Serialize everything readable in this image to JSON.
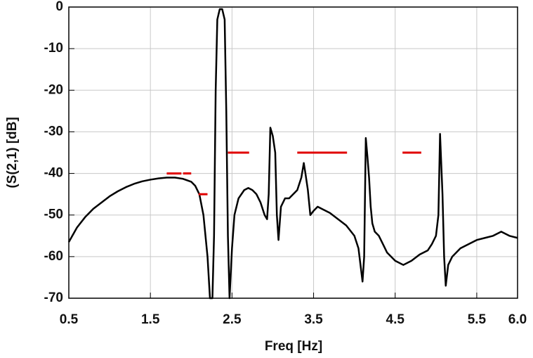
{
  "chart_data": {
    "type": "line",
    "xlabel": "Freq [Hz]",
    "ylabel": "(S(2,1) [dB]",
    "xlim": [
      0.5,
      6
    ],
    "ylim": [
      -70,
      0
    ],
    "xticks": [
      0.5,
      1.5,
      2.5,
      3.5,
      4.5,
      5.5,
      {
        "value": 6,
        "label": "6.0"
      }
    ],
    "yticks": [
      0,
      -10,
      -20,
      -30,
      -40,
      -50,
      -60,
      -70
    ],
    "grid": true,
    "series": [
      {
        "color": "#000000",
        "x": [
          0.5,
          0.6,
          0.7,
          0.8,
          0.9,
          1.0,
          1.1,
          1.2,
          1.3,
          1.4,
          1.5,
          1.6,
          1.7,
          1.8,
          1.9,
          2.0,
          2.05,
          2.1,
          2.15,
          2.2,
          2.23,
          2.26,
          2.28,
          2.3,
          2.32,
          2.35,
          2.38,
          2.41,
          2.43,
          2.45,
          2.47,
          2.5,
          2.53,
          2.58,
          2.65,
          2.7,
          2.75,
          2.8,
          2.85,
          2.9,
          2.93,
          2.95,
          2.97,
          3.0,
          3.03,
          3.05,
          3.07,
          3.1,
          3.15,
          3.2,
          3.25,
          3.3,
          3.35,
          3.38,
          3.4,
          3.43,
          3.46,
          3.5,
          3.55,
          3.6,
          3.7,
          3.8,
          3.9,
          4.0,
          4.05,
          4.1,
          4.12,
          4.14,
          4.16,
          4.18,
          4.2,
          4.22,
          4.25,
          4.3,
          4.35,
          4.4,
          4.5,
          4.6,
          4.7,
          4.8,
          4.9,
          4.95,
          5.0,
          5.03,
          5.05,
          5.08,
          5.1,
          5.12,
          5.15,
          5.2,
          5.3,
          5.4,
          5.5,
          5.6,
          5.7,
          5.8,
          5.9,
          6.0
        ],
        "values": [
          -56.5,
          -53,
          -50.5,
          -48.5,
          -47,
          -45.5,
          -44.3,
          -43.3,
          -42.5,
          -41.9,
          -41.5,
          -41.2,
          -41,
          -41,
          -41.3,
          -42,
          -43,
          -45,
          -50,
          -60,
          -70,
          -70,
          -55,
          -20,
          -3,
          -0.5,
          -0.5,
          -3,
          -25,
          -55,
          -70,
          -58,
          -50,
          -46,
          -44,
          -43.5,
          -44,
          -45,
          -47,
          -50,
          -51,
          -45,
          -29,
          -31,
          -35,
          -50,
          -56,
          -48,
          -46,
          -46,
          -45,
          -44,
          -41,
          -37.5,
          -40,
          -44,
          -50,
          -49,
          -48,
          -48.5,
          -49.5,
          -51,
          -52.5,
          -55,
          -58,
          -66,
          -60,
          -31.5,
          -36,
          -41,
          -48,
          -52,
          -54,
          -55,
          -57,
          -59,
          -61,
          -62,
          -61,
          -59.5,
          -58.5,
          -57,
          -55,
          -50,
          -30.5,
          -45,
          -60,
          -67,
          -62,
          -60,
          -58,
          -57,
          -56,
          -55.5,
          -55,
          -54,
          -55,
          -55.5
        ]
      }
    ],
    "limits": [
      {
        "x": [
          1.7,
          1.88
        ],
        "value": -40,
        "color": "#e00000"
      },
      {
        "x": [
          1.9,
          2.0
        ],
        "value": -40,
        "color": "#e00000"
      },
      {
        "x": [
          2.09,
          2.2
        ],
        "value": -45,
        "color": "#e00000"
      },
      {
        "x": [
          2.45,
          2.71
        ],
        "value": -35,
        "color": "#e00000"
      },
      {
        "x": [
          3.3,
          3.91
        ],
        "value": -35,
        "color": "#e00000"
      },
      {
        "x": [
          4.59,
          4.82
        ],
        "value": -35,
        "color": "#e00000"
      }
    ]
  }
}
